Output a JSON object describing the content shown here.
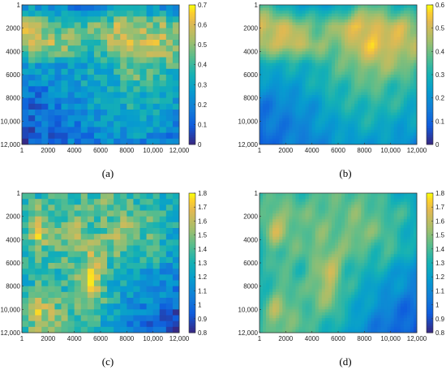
{
  "chart_data": [
    {
      "type": "heatmap",
      "id": "a",
      "caption": "(a)",
      "style": "pixelated",
      "xticks": [
        "1",
        "2000",
        "4000",
        "6000",
        "8000",
        "10,000",
        "12,000"
      ],
      "yticks": [
        "1",
        "2000",
        "4000",
        "6000",
        "8000",
        "10,000",
        "12,000"
      ],
      "xlim": [
        1,
        12000
      ],
      "ylim": [
        1,
        12000
      ],
      "colorbar": {
        "min": 0,
        "max": 0.7,
        "ticks": [
          "0",
          "0.1",
          "0.2",
          "0.3",
          "0.4",
          "0.5",
          "0.6",
          "0.7"
        ]
      },
      "grid_summary": [
        [
          0.3,
          0.28,
          0.25,
          0.2,
          0.18,
          0.22,
          0.28,
          0.3,
          0.32,
          0.28,
          0.25,
          0.22
        ],
        [
          0.58,
          0.55,
          0.48,
          0.42,
          0.4,
          0.45,
          0.5,
          0.58,
          0.55,
          0.48,
          0.52,
          0.45
        ],
        [
          0.5,
          0.52,
          0.55,
          0.5,
          0.45,
          0.42,
          0.48,
          0.52,
          0.6,
          0.58,
          0.55,
          0.5
        ],
        [
          0.3,
          0.28,
          0.26,
          0.25,
          0.3,
          0.32,
          0.35,
          0.4,
          0.48,
          0.45,
          0.42,
          0.38
        ],
        [
          0.18,
          0.2,
          0.22,
          0.25,
          0.28,
          0.3,
          0.32,
          0.35,
          0.4,
          0.38,
          0.35,
          0.32
        ],
        [
          0.12,
          0.15,
          0.18,
          0.2,
          0.22,
          0.28,
          0.3,
          0.32,
          0.35,
          0.32,
          0.3,
          0.28
        ],
        [
          0.1,
          0.12,
          0.15,
          0.18,
          0.2,
          0.22,
          0.25,
          0.28,
          0.3,
          0.28,
          0.25,
          0.22
        ],
        [
          0.08,
          0.1,
          0.12,
          0.15,
          0.18,
          0.2,
          0.22,
          0.2,
          0.22,
          0.2,
          0.18,
          0.15
        ]
      ]
    },
    {
      "type": "heatmap",
      "id": "b",
      "caption": "(b)",
      "style": "smooth",
      "xticks": [
        "1",
        "2000",
        "4000",
        "6000",
        "8000",
        "10,000",
        "12,000"
      ],
      "yticks": [
        "1",
        "2000",
        "4000",
        "6000",
        "8000",
        "10,000",
        "12,000"
      ],
      "xlim": [
        1,
        12000
      ],
      "ylim": [
        1,
        12000
      ],
      "colorbar": {
        "min": 0,
        "max": 0.6,
        "ticks": [
          "0",
          "0.1",
          "0.2",
          "0.3",
          "0.4",
          "0.5",
          "0.6"
        ]
      },
      "grid_summary": [
        [
          0.35,
          0.32,
          0.28,
          0.25,
          0.22,
          0.25,
          0.3,
          0.35,
          0.38,
          0.35,
          0.3,
          0.28
        ],
        [
          0.52,
          0.5,
          0.48,
          0.42,
          0.4,
          0.42,
          0.48,
          0.55,
          0.52,
          0.48,
          0.5,
          0.45
        ],
        [
          0.45,
          0.48,
          0.52,
          0.48,
          0.42,
          0.4,
          0.45,
          0.5,
          0.55,
          0.52,
          0.5,
          0.46
        ],
        [
          0.3,
          0.28,
          0.28,
          0.28,
          0.32,
          0.35,
          0.38,
          0.42,
          0.46,
          0.44,
          0.42,
          0.38
        ],
        [
          0.2,
          0.22,
          0.24,
          0.26,
          0.28,
          0.32,
          0.34,
          0.36,
          0.38,
          0.36,
          0.34,
          0.32
        ],
        [
          0.15,
          0.16,
          0.18,
          0.2,
          0.24,
          0.28,
          0.3,
          0.32,
          0.33,
          0.32,
          0.3,
          0.28
        ],
        [
          0.12,
          0.14,
          0.16,
          0.18,
          0.2,
          0.24,
          0.26,
          0.28,
          0.28,
          0.27,
          0.25,
          0.24
        ],
        [
          0.1,
          0.12,
          0.14,
          0.16,
          0.18,
          0.2,
          0.22,
          0.22,
          0.24,
          0.22,
          0.2,
          0.18
        ]
      ]
    },
    {
      "type": "heatmap",
      "id": "c",
      "caption": "(c)",
      "style": "pixelated",
      "xticks": [
        "1",
        "2000",
        "4000",
        "6000",
        "8000",
        "10,000",
        "12,000"
      ],
      "yticks": [
        "1",
        "2000",
        "4000",
        "6000",
        "8000",
        "10,000",
        "12,000"
      ],
      "xlim": [
        1,
        12000
      ],
      "ylim": [
        1,
        12000
      ],
      "colorbar": {
        "min": 0.8,
        "max": 1.8,
        "ticks": [
          "0.8",
          "0.9",
          "1",
          "1.1",
          "1.2",
          "1.3",
          "1.4",
          "1.5",
          "1.6",
          "1.7",
          "1.8"
        ]
      },
      "grid_summary": [
        [
          1.3,
          1.35,
          1.4,
          1.38,
          1.35,
          1.4,
          1.45,
          1.4,
          1.35,
          1.3,
          1.25,
          1.2
        ],
        [
          1.4,
          1.55,
          1.45,
          1.4,
          1.5,
          1.45,
          1.4,
          1.5,
          1.45,
          1.4,
          1.35,
          1.3
        ],
        [
          1.35,
          1.7,
          1.45,
          1.4,
          1.55,
          1.35,
          1.5,
          1.55,
          1.45,
          1.4,
          1.3,
          1.25
        ],
        [
          1.3,
          1.4,
          1.35,
          1.45,
          1.4,
          1.6,
          1.45,
          1.4,
          1.35,
          1.45,
          1.3,
          1.2
        ],
        [
          1.25,
          1.35,
          1.4,
          1.3,
          1.5,
          1.7,
          1.35,
          1.3,
          1.25,
          1.2,
          1.15,
          1.1
        ],
        [
          1.3,
          1.45,
          1.4,
          1.35,
          1.55,
          1.65,
          1.3,
          1.25,
          1.2,
          1.15,
          1.1,
          1.05
        ],
        [
          1.4,
          1.65,
          1.5,
          1.45,
          1.4,
          1.45,
          1.3,
          1.2,
          1.1,
          1.05,
          1.0,
          0.95
        ],
        [
          1.35,
          1.55,
          1.45,
          1.4,
          1.35,
          1.3,
          1.2,
          1.1,
          1.05,
          1.0,
          0.95,
          0.9
        ]
      ]
    },
    {
      "type": "heatmap",
      "id": "d",
      "caption": "(d)",
      "style": "smooth",
      "xticks": [
        "1",
        "2000",
        "4000",
        "6000",
        "8000",
        "10,000",
        "12,000"
      ],
      "yticks": [
        "1",
        "2000",
        "4000",
        "6000",
        "8000",
        "10,000",
        "12,000"
      ],
      "xlim": [
        1,
        12000
      ],
      "ylim": [
        1,
        12000
      ],
      "colorbar": {
        "min": 0.8,
        "max": 1.8,
        "ticks": [
          "0.8",
          "0.9",
          "1",
          "1.1",
          "1.2",
          "1.3",
          "1.4",
          "1.5",
          "1.6",
          "1.7",
          "1.8"
        ]
      },
      "grid_summary": [
        [
          1.35,
          1.4,
          1.4,
          1.38,
          1.38,
          1.42,
          1.45,
          1.42,
          1.38,
          1.32,
          1.28,
          1.24
        ],
        [
          1.4,
          1.55,
          1.48,
          1.42,
          1.48,
          1.45,
          1.42,
          1.48,
          1.44,
          1.4,
          1.35,
          1.3
        ],
        [
          1.38,
          1.62,
          1.48,
          1.42,
          1.5,
          1.4,
          1.48,
          1.52,
          1.45,
          1.4,
          1.32,
          1.28
        ],
        [
          1.32,
          1.42,
          1.4,
          1.42,
          1.45,
          1.55,
          1.45,
          1.4,
          1.36,
          1.4,
          1.3,
          1.22
        ],
        [
          1.28,
          1.38,
          1.4,
          1.35,
          1.5,
          1.62,
          1.38,
          1.32,
          1.26,
          1.22,
          1.16,
          1.12
        ],
        [
          1.3,
          1.45,
          1.42,
          1.38,
          1.52,
          1.58,
          1.32,
          1.26,
          1.2,
          1.15,
          1.1,
          1.06
        ],
        [
          1.38,
          1.58,
          1.48,
          1.42,
          1.4,
          1.42,
          1.3,
          1.22,
          1.12,
          1.06,
          1.0,
          0.96
        ],
        [
          1.35,
          1.5,
          1.44,
          1.4,
          1.35,
          1.3,
          1.22,
          1.12,
          1.06,
          1.0,
          0.95,
          0.92
        ]
      ]
    }
  ]
}
